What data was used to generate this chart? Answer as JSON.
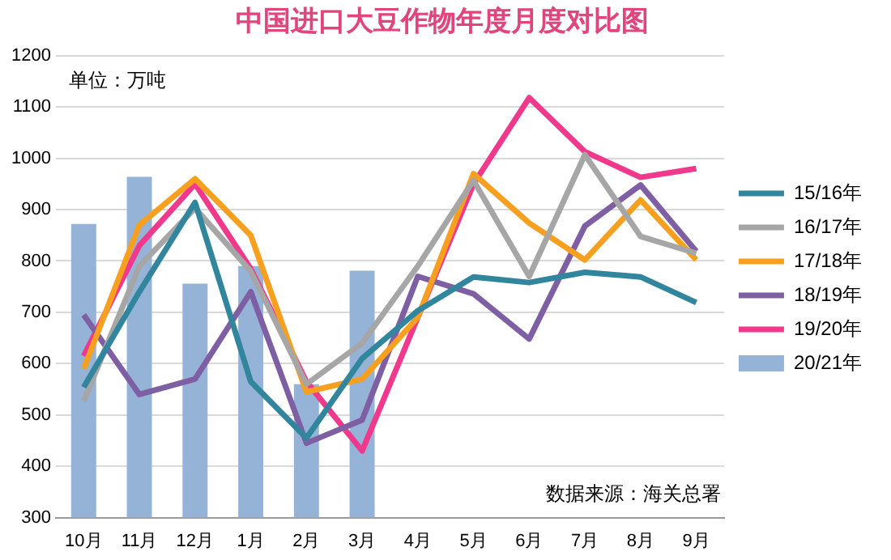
{
  "chart_data": {
    "type": "line",
    "title": "中国进口大豆作物年度月度对比图",
    "categories": [
      "10月",
      "11月",
      "12月",
      "1月",
      "2月",
      "3月",
      "4月",
      "5月",
      "6月",
      "7月",
      "8月",
      "9月"
    ],
    "series": [
      {
        "name": "20/21年",
        "type": "bar",
        "color": "#95b3d7",
        "values": [
          872,
          964,
          756,
          790,
          560,
          781,
          null,
          null,
          null,
          null,
          null,
          null
        ]
      },
      {
        "name": "15/16年",
        "color": "#31859c",
        "values": [
          554,
          740,
          914,
          565,
          455,
          610,
          703,
          769,
          758,
          778,
          769,
          719
        ]
      },
      {
        "name": "16/17年",
        "color": "#a6a6a6",
        "values": [
          527,
          790,
          903,
          780,
          560,
          640,
          790,
          957,
          770,
          1007,
          848,
          815
        ]
      },
      {
        "name": "17/18年",
        "color": "#f79f1f",
        "values": [
          590,
          870,
          960,
          850,
          545,
          570,
          690,
          970,
          874,
          802,
          919,
          802
        ]
      },
      {
        "name": "18/19年",
        "color": "#7f5fa3",
        "values": [
          695,
          540,
          570,
          740,
          445,
          490,
          770,
          736,
          648,
          868,
          948,
          819
        ]
      },
      {
        "name": "19/20年",
        "color": "#f0388c",
        "values": [
          615,
          830,
          950,
          785,
          565,
          430,
          690,
          950,
          1118,
          1013,
          963,
          980
        ]
      }
    ],
    "ylim": [
      300,
      1200
    ],
    "yticks": [
      300,
      400,
      500,
      600,
      700,
      800,
      900,
      1000,
      1100,
      1200
    ],
    "grid": "y",
    "legend": "right",
    "marker": "none",
    "line_style": "solid",
    "annotations": [
      "单位：万吨",
      "数据来源：海关总署"
    ]
  }
}
